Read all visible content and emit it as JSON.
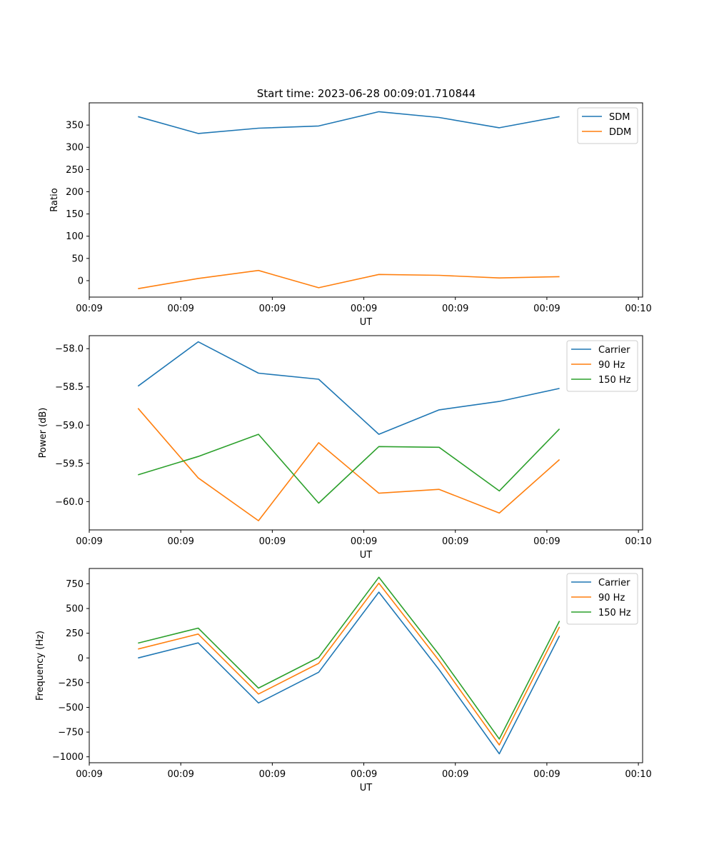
{
  "figure": {
    "title": "Start time: 2023-06-28 00:09:01.710844"
  },
  "chart_data": [
    {
      "type": "line",
      "title": "Start time: 2023-06-28 00:09:01.710844",
      "xlabel": "UT",
      "ylabel": "Ratio",
      "x": [
        1,
        2,
        3,
        4,
        5,
        6,
        7,
        8
      ],
      "xlim": [
        0.19,
        9.38
      ],
      "x_ticks": [
        {
          "value": 0.19,
          "label": "00:09"
        },
        {
          "value": 1.71,
          "label": "00:09"
        },
        {
          "value": 3.23,
          "label": "00:09"
        },
        {
          "value": 4.75,
          "label": "00:09"
        },
        {
          "value": 6.27,
          "label": "00:09"
        },
        {
          "value": 7.79,
          "label": "00:09"
        },
        {
          "value": 9.31,
          "label": "00:10"
        }
      ],
      "ylim": [
        -37,
        400
      ],
      "y_ticks": [
        0,
        50,
        100,
        150,
        200,
        250,
        300,
        350
      ],
      "legend_position": "top-right",
      "series": [
        {
          "name": "SDM",
          "color": "#1f77b4",
          "values": [
            369,
            331,
            343,
            348,
            380,
            367,
            344,
            369
          ]
        },
        {
          "name": "DDM",
          "color": "#ff7f0e",
          "values": [
            -18,
            5,
            23,
            -16,
            14,
            12,
            6,
            9
          ]
        }
      ]
    },
    {
      "type": "line",
      "title": "",
      "xlabel": "UT",
      "ylabel": "Power (dB)",
      "x": [
        1,
        2,
        3,
        4,
        5,
        6,
        7,
        8
      ],
      "xlim": [
        0.19,
        9.38
      ],
      "x_ticks": [
        {
          "value": 0.19,
          "label": "00:09"
        },
        {
          "value": 1.71,
          "label": "00:09"
        },
        {
          "value": 3.23,
          "label": "00:09"
        },
        {
          "value": 4.75,
          "label": "00:09"
        },
        {
          "value": 6.27,
          "label": "00:09"
        },
        {
          "value": 7.79,
          "label": "00:09"
        },
        {
          "value": 9.31,
          "label": "00:10"
        }
      ],
      "ylim": [
        -60.37,
        -57.83
      ],
      "y_ticks": [
        -60.0,
        -59.5,
        -59.0,
        -58.5,
        -58.0
      ],
      "y_tick_labels": [
        "−60.0",
        "−59.5",
        "−59.0",
        "−58.5",
        "−58.0"
      ],
      "legend_position": "top-right",
      "series": [
        {
          "name": "Carrier",
          "color": "#1f77b4",
          "values": [
            -58.49,
            -57.91,
            -58.32,
            -58.4,
            -59.12,
            -58.8,
            -58.69,
            -58.52
          ]
        },
        {
          "name": "90 Hz",
          "color": "#ff7f0e",
          "values": [
            -58.78,
            -59.69,
            -60.25,
            -59.23,
            -59.89,
            -59.84,
            -60.15,
            -59.45
          ]
        },
        {
          "name": "150 Hz",
          "color": "#2ca02c",
          "values": [
            -59.65,
            -59.41,
            -59.12,
            -60.02,
            -59.28,
            -59.29,
            -59.86,
            -59.05
          ]
        }
      ]
    },
    {
      "type": "line",
      "title": "",
      "xlabel": "UT",
      "ylabel": "Frequency (Hz)",
      "x": [
        1,
        2,
        3,
        4,
        5,
        6,
        7,
        8
      ],
      "xlim": [
        0.19,
        9.38
      ],
      "x_ticks": [
        {
          "value": 0.19,
          "label": "00:09"
        },
        {
          "value": 1.71,
          "label": "00:09"
        },
        {
          "value": 3.23,
          "label": "00:09"
        },
        {
          "value": 4.75,
          "label": "00:09"
        },
        {
          "value": 6.27,
          "label": "00:09"
        },
        {
          "value": 7.79,
          "label": "00:09"
        },
        {
          "value": 9.31,
          "label": "00:10"
        }
      ],
      "ylim": [
        -1060,
        905
      ],
      "y_ticks": [
        -1000,
        -750,
        -500,
        -250,
        0,
        250,
        500,
        750
      ],
      "y_tick_labels": [
        "−1000",
        "−750",
        "−500",
        "−250",
        "0",
        "250",
        "500",
        "750"
      ],
      "legend_position": "top-right",
      "series": [
        {
          "name": "Carrier",
          "color": "#1f77b4",
          "values": [
            0,
            152,
            -455,
            -145,
            666,
            -118,
            -970,
            224
          ]
        },
        {
          "name": "90 Hz",
          "color": "#ff7f0e",
          "values": [
            90,
            242,
            -365,
            -55,
            756,
            -28,
            -880,
            314
          ]
        },
        {
          "name": "150 Hz",
          "color": "#2ca02c",
          "values": [
            150,
            302,
            -305,
            5,
            816,
            32,
            -820,
            374
          ]
        }
      ]
    }
  ]
}
